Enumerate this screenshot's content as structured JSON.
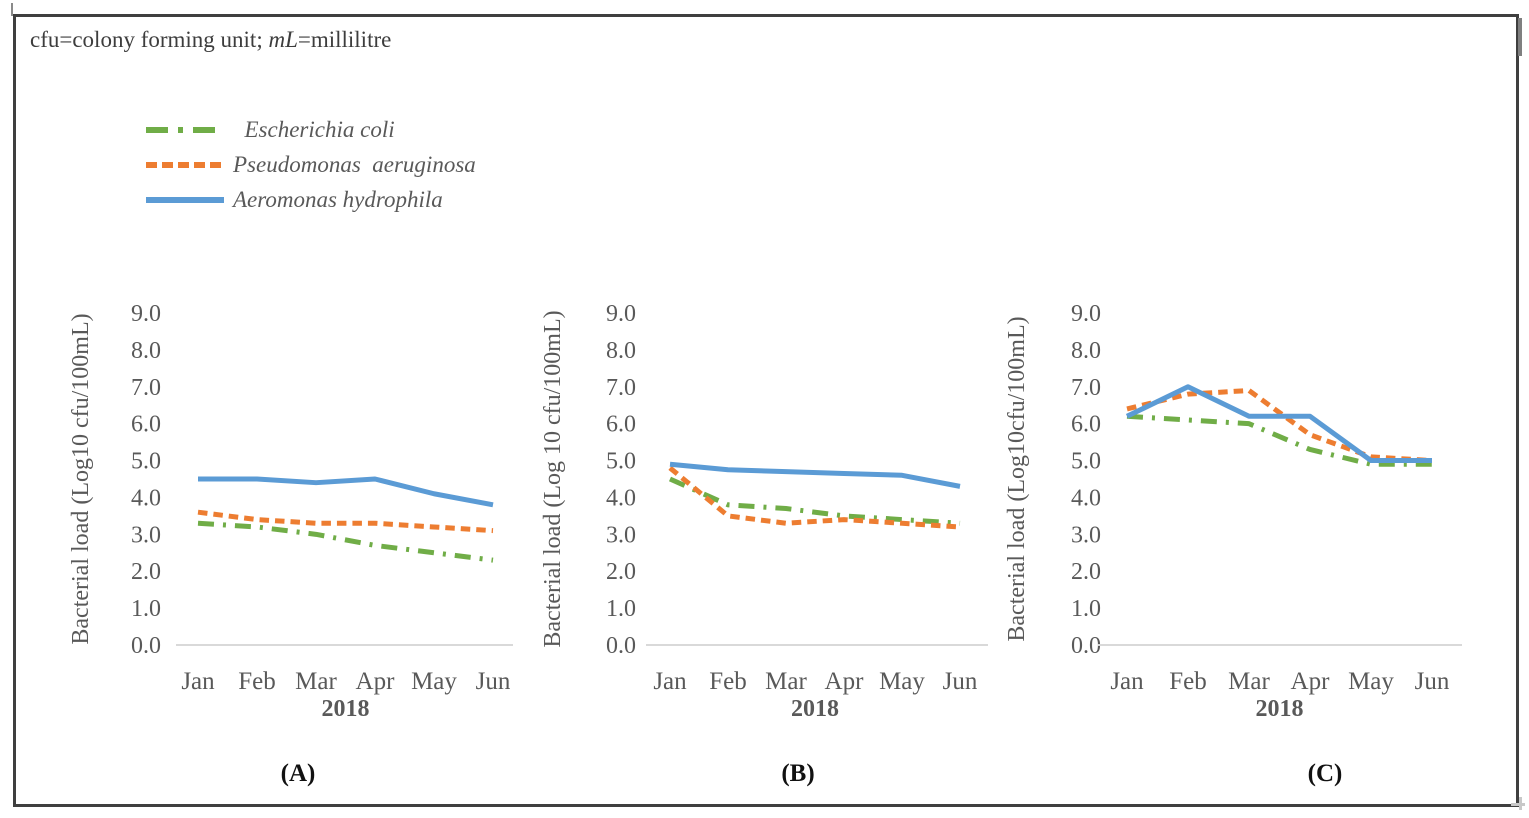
{
  "note": {
    "part1": "cfu=colony forming unit; ",
    "part2": "mL",
    "part3": "=millilitre"
  },
  "legend": {
    "items": [
      {
        "label": "  Escherichia coli",
        "color": "#70AD47",
        "style": "dash-dot"
      },
      {
        "label": "Pseudomonas  aeruginosa",
        "color": "#ED7D31",
        "style": "dash"
      },
      {
        "label": "Aeromonas hydrophila",
        "color": "#5B9BD5",
        "style": "solid"
      }
    ]
  },
  "colors": {
    "escherichia_coli_green": "#70AD47",
    "pseudomonas_aeruginosa_orange": "#ED7D31",
    "aeromonas_hydrophila_blue": "#5B9BD5",
    "axis_line_gray": "#D9D9D9",
    "text_gray": "#595959"
  },
  "chart_data": [
    {
      "type": "line",
      "panel_label": "(A)",
      "ylabel": "Bacterial load (Log10 cfu/100mL)",
      "x_axis_title": "2018",
      "categories": [
        "Jan",
        "Feb",
        "Mar",
        "Apr",
        "May",
        "Jun"
      ],
      "ylim": [
        0,
        9
      ],
      "ytick_step": 1,
      "grid": false,
      "series": [
        {
          "name": "Escherichia coli",
          "style": "dash-dot",
          "color": "#70AD47",
          "values": [
            3.3,
            3.2,
            3.0,
            2.7,
            2.5,
            2.3
          ]
        },
        {
          "name": "Pseudomonas aeruginosa",
          "style": "dash",
          "color": "#ED7D31",
          "values": [
            3.6,
            3.4,
            3.3,
            3.3,
            3.2,
            3.1
          ]
        },
        {
          "name": "Aeromonas hydrophila",
          "style": "solid",
          "color": "#5B9BD5",
          "values": [
            4.5,
            4.5,
            4.4,
            4.5,
            4.1,
            3.8
          ]
        }
      ]
    },
    {
      "type": "line",
      "panel_label": "(B)",
      "ylabel": "Bacterial load (Log 10 cfu/100mL)",
      "x_axis_title": "2018",
      "categories": [
        "Jan",
        "Feb",
        "Mar",
        "Apr",
        "May",
        "Jun"
      ],
      "ylim": [
        0,
        9
      ],
      "ytick_step": 1,
      "grid": false,
      "series": [
        {
          "name": "Escherichia coli",
          "style": "dash-dot",
          "color": "#70AD47",
          "values": [
            4.5,
            3.8,
            3.7,
            3.5,
            3.4,
            3.3
          ]
        },
        {
          "name": "Pseudomonas aeruginosa",
          "style": "dash",
          "color": "#ED7D31",
          "values": [
            4.8,
            3.5,
            3.3,
            3.4,
            3.3,
            3.2
          ]
        },
        {
          "name": "Aeromonas hydrophila",
          "style": "solid",
          "color": "#5B9BD5",
          "values": [
            4.9,
            4.75,
            4.7,
            4.65,
            4.6,
            4.3
          ]
        }
      ]
    },
    {
      "type": "line",
      "panel_label": "(C)",
      "ylabel": "Bacterial load (Log10cfu/100mL)",
      "x_axis_title": "2018",
      "categories": [
        "Jan",
        "Feb",
        "Mar",
        "Apr",
        "May",
        "Jun"
      ],
      "ylim": [
        0,
        9
      ],
      "ytick_step": 1,
      "grid": false,
      "series": [
        {
          "name": "Escherichia coli",
          "style": "dash-dot",
          "color": "#70AD47",
          "values": [
            6.2,
            6.1,
            6.0,
            5.3,
            4.9,
            4.9
          ]
        },
        {
          "name": "Pseudomonas aeruginosa",
          "style": "dash",
          "color": "#ED7D31",
          "values": [
            6.4,
            6.8,
            6.9,
            5.7,
            5.1,
            5.0
          ]
        },
        {
          "name": "Aeromonas hydrophila",
          "style": "solid",
          "color": "#5B9BD5",
          "values": [
            6.2,
            7.0,
            6.2,
            6.2,
            5.0,
            5.0
          ]
        }
      ]
    }
  ]
}
